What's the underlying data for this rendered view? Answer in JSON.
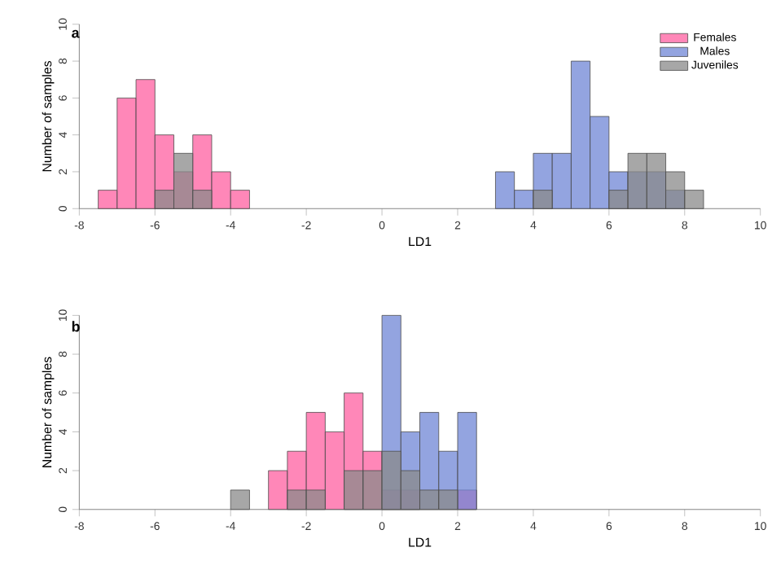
{
  "chart_data": [
    {
      "type": "histogram",
      "title": "a",
      "xlabel": "LD1",
      "ylabel": "Number of samples",
      "bins": [
        -7.5,
        -7,
        -6.5,
        -6,
        -5.5,
        -5,
        -4.5,
        -4,
        -3.5,
        -3,
        -2.5,
        -2,
        -1.5,
        -1,
        -0.5,
        0,
        0.5,
        1,
        1.5,
        2,
        2.5,
        3,
        3.5,
        4,
        4.5,
        5,
        5.5,
        6,
        6.5,
        7,
        7.5,
        8,
        8.5
      ],
      "series": [
        {
          "name": "Females",
          "color": "#ff5fa0",
          "values": [
            1,
            6,
            7,
            4,
            2,
            4,
            2,
            1,
            0,
            0,
            0,
            0,
            0,
            0,
            0,
            0,
            0,
            0,
            0,
            0,
            0,
            0,
            0,
            0,
            0,
            0,
            0,
            0,
            0,
            0,
            0,
            0
          ]
        },
        {
          "name": "Males",
          "color": "#6f86d6",
          "values": [
            0,
            0,
            0,
            0,
            0,
            0,
            0,
            0,
            0,
            0,
            0,
            0,
            0,
            0,
            0,
            0,
            0,
            0,
            0,
            0,
            0,
            2,
            1,
            3,
            3,
            8,
            5,
            2,
            2,
            2,
            1,
            0
          ]
        },
        {
          "name": "Juveniles",
          "color": "#8a8a8a",
          "values": [
            0,
            0,
            0,
            1,
            3,
            1,
            0,
            0,
            0,
            0,
            0,
            0,
            0,
            0,
            0,
            0,
            0,
            0,
            0,
            0,
            0,
            0,
            0,
            1,
            0,
            0,
            0,
            1,
            3,
            3,
            2,
            1
          ]
        }
      ],
      "xlim": [
        -8,
        10
      ],
      "xticks": [
        -8,
        -6,
        -4,
        -2,
        0,
        2,
        4,
        6,
        8,
        10
      ],
      "ylim": [
        0,
        10
      ],
      "yticks": [
        0,
        2,
        4,
        6,
        8,
        10
      ],
      "legend": "top right"
    },
    {
      "type": "histogram",
      "title": "b",
      "xlabel": "LD1",
      "ylabel": "Number of samples",
      "bins": [
        -4,
        -3.5,
        -3,
        -2.5,
        -2,
        -1.5,
        -1,
        -0.5,
        0,
        0.5,
        1,
        1.5,
        2,
        2.5
      ],
      "series": [
        {
          "color": "#ff5fa0",
          "values": [
            0,
            0,
            2,
            3,
            5,
            4,
            6,
            3,
            1,
            1,
            0,
            0,
            1
          ]
        },
        {
          "color": "#6f86d6",
          "values": [
            0,
            0,
            0,
            0,
            0,
            0,
            0,
            0,
            10,
            4,
            5,
            3,
            5
          ]
        },
        {
          "color": "#8a8a8a",
          "values": [
            1,
            0,
            0,
            1,
            1,
            0,
            2,
            2,
            3,
            2,
            1,
            1,
            0
          ]
        }
      ],
      "xlim": [
        -8,
        10
      ],
      "xticks": [
        -8,
        -6,
        -4,
        -2,
        0,
        2,
        4,
        6,
        8,
        10
      ],
      "ylim": [
        0,
        10
      ],
      "yticks": [
        0,
        2,
        4,
        6,
        8,
        10
      ]
    }
  ]
}
